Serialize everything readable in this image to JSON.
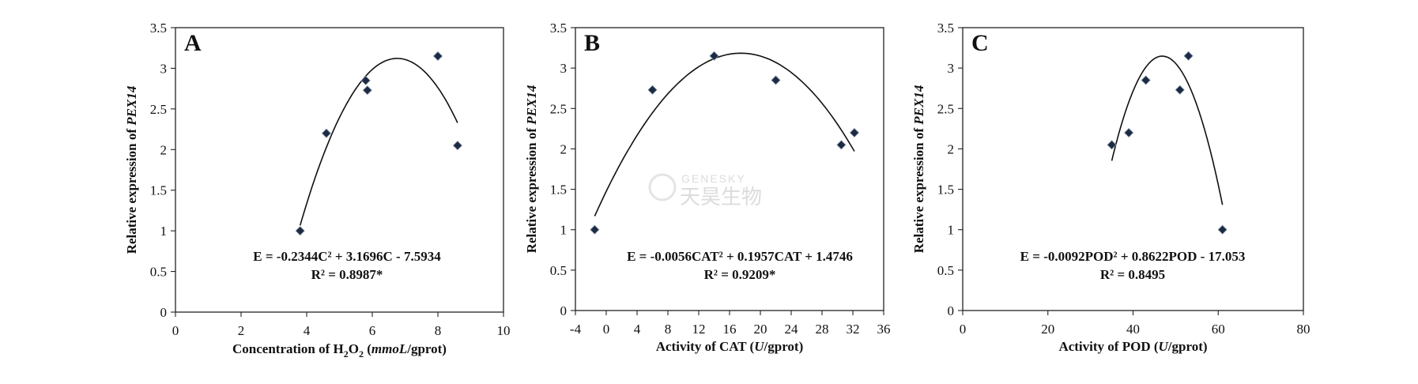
{
  "watermark": {
    "en": "GENESKY",
    "cn": "天昊生物"
  },
  "chart_data": [
    {
      "type": "scatter",
      "panel_label": "A",
      "xlabel": {
        "prefix": "Concentration of H",
        "sub": "2",
        "mid": "O",
        "sub2": "2",
        "italic": "mmoL",
        "suffix": "/gprot)",
        "open": " ("
      },
      "ylabel": {
        "prefix": "Relative expression of ",
        "italic": "PEX14"
      },
      "xlim": [
        0,
        10
      ],
      "ylim": [
        0,
        3.5
      ],
      "xticks": [
        0,
        2,
        4,
        6,
        8,
        10
      ],
      "yticks": [
        0,
        0.5,
        1,
        1.5,
        2,
        2.5,
        3,
        3.5
      ],
      "ytick_labels": [
        "0",
        "0.5",
        "1",
        "1.5",
        "2",
        "2.5",
        "3",
        "3.5"
      ],
      "points": [
        {
          "x": 3.8,
          "y": 1.0
        },
        {
          "x": 4.6,
          "y": 2.2
        },
        {
          "x": 5.8,
          "y": 2.85
        },
        {
          "x": 5.85,
          "y": 2.73
        },
        {
          "x": 8.0,
          "y": 3.15
        },
        {
          "x": 8.6,
          "y": 2.05
        }
      ],
      "fit": {
        "a": -0.2344,
        "b": 3.1696,
        "c": -7.5934,
        "x_from": 3.8,
        "x_to": 8.6
      },
      "equation": "E = -0.2344C² + 3.1696C - 7.5934",
      "r2": "R² = 0.8987*"
    },
    {
      "type": "scatter",
      "panel_label": "B",
      "xlabel": {
        "prefix": "Activity of CAT (",
        "italic": "U",
        "suffix": "/gprot)"
      },
      "ylabel": {
        "prefix": "Relative expression of ",
        "italic": "PEX14"
      },
      "xlim": [
        -4,
        36
      ],
      "ylim": [
        0,
        3.5
      ],
      "xticks": [
        -4,
        0,
        4,
        8,
        12,
        16,
        20,
        24,
        28,
        32,
        36
      ],
      "xtick_labels": [
        "-4",
        "0",
        "4",
        "8",
        "12",
        "16",
        "20",
        "24",
        "28",
        "32",
        "36"
      ],
      "yticks": [
        0,
        0.5,
        1,
        1.5,
        2,
        2.5,
        3,
        3.5
      ],
      "ytick_labels": [
        "0",
        "0.5",
        "1",
        "1.5",
        "2",
        "2.5",
        "3",
        "3.5"
      ],
      "points": [
        {
          "x": -1.5,
          "y": 1.0
        },
        {
          "x": 6.0,
          "y": 2.73
        },
        {
          "x": 14.0,
          "y": 3.15
        },
        {
          "x": 22.0,
          "y": 2.85
        },
        {
          "x": 30.5,
          "y": 2.05
        },
        {
          "x": 32.2,
          "y": 2.2
        }
      ],
      "fit": {
        "a": -0.0056,
        "b": 0.1957,
        "c": 1.4746,
        "x_from": -1.5,
        "x_to": 32.2
      },
      "equation": "E = -0.0056CAT² + 0.1957CAT + 1.4746",
      "r2": "R² = 0.9209*"
    },
    {
      "type": "scatter",
      "panel_label": "C",
      "xlabel": {
        "prefix": "Activity of POD (",
        "italic": "U",
        "suffix": "/gprot)"
      },
      "ylabel": {
        "prefix": "Relative expression of ",
        "italic": "PEX14"
      },
      "xlim": [
        0,
        80
      ],
      "ylim": [
        0,
        3.5
      ],
      "xticks": [
        0,
        20,
        40,
        60,
        80
      ],
      "yticks": [
        0,
        0.5,
        1,
        1.5,
        2,
        2.5,
        3,
        3.5
      ],
      "ytick_labels": [
        "0",
        "0.5",
        "1",
        "1.5",
        "2",
        "2.5",
        "3",
        "3.5"
      ],
      "points": [
        {
          "x": 35.0,
          "y": 2.05
        },
        {
          "x": 39.0,
          "y": 2.2
        },
        {
          "x": 43.0,
          "y": 2.85
        },
        {
          "x": 51.0,
          "y": 2.73
        },
        {
          "x": 53.0,
          "y": 3.15
        },
        {
          "x": 61.0,
          "y": 1.0
        }
      ],
      "fit": {
        "a": -0.0092,
        "b": 0.8622,
        "c": -17.053,
        "x_from": 35.0,
        "x_to": 61.0
      },
      "equation": "E = -0.0092POD² + 0.8622POD - 17.053",
      "r2": "R² = 0.8495"
    }
  ]
}
